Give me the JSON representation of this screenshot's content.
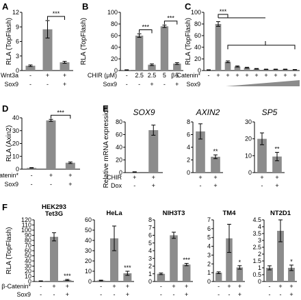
{
  "panels": [
    {
      "id": "A",
      "ylabel": "RLA (TopFlash)",
      "ymax": 12,
      "ticks": [
        0,
        3,
        6,
        9,
        12
      ],
      "values": [
        1.0,
        8.5,
        1.7
      ],
      "errors": [
        0.15,
        1.8,
        0.2
      ],
      "stars": [
        "",
        "",
        ""
      ],
      "rows": [
        {
          "label": "Wnt3a",
          "cells": [
            "-",
            "+",
            "+"
          ]
        },
        {
          "label": "Sox9",
          "cells": [
            "-",
            "-",
            "+"
          ]
        }
      ],
      "brackets": [
        {
          "from": 1,
          "to": 2,
          "text": "***"
        }
      ]
    },
    {
      "id": "B",
      "ylabel": "RLA (TopFlash)",
      "ymax": 100,
      "ticks": [
        0,
        20,
        40,
        60,
        80,
        100
      ],
      "values": [
        1.0,
        60,
        10,
        76,
        12
      ],
      "errors": [
        0.3,
        3,
        1.5,
        2,
        1.5
      ],
      "stars": [
        "",
        "",
        "",
        "",
        ""
      ],
      "rows": [
        {
          "label": "CHIR (μM)",
          "cells": [
            "-",
            "2.5",
            "2.5",
            "5",
            "5"
          ]
        },
        {
          "label": "Sox9",
          "cells": [
            "-",
            "-",
            "+",
            "-",
            "+"
          ]
        }
      ],
      "brackets": [
        {
          "from": 1,
          "to": 2,
          "text": "***"
        },
        {
          "from": 3,
          "to": 4,
          "text": "***"
        }
      ]
    },
    {
      "id": "C",
      "ylabel": "RLA (TopFlash)",
      "ymax": 100,
      "ticks": [
        0,
        20,
        40,
        60,
        80,
        100
      ],
      "values": [
        1.0,
        80,
        15,
        7,
        5,
        3,
        2,
        2,
        2,
        1.5
      ],
      "errors": [
        0.3,
        4,
        1.5,
        1,
        0.6,
        0.5,
        0.4,
        0.4,
        0.4,
        0.3
      ],
      "stars": [
        "",
        "",
        "",
        "",
        "",
        "",
        "",
        "",
        "",
        ""
      ],
      "rows": [
        {
          "label": "β-Catenin*",
          "cells": [
            "-",
            "+",
            "+",
            "+",
            "+",
            "+",
            "+",
            "+",
            "+",
            "+"
          ]
        },
        {
          "label": "Sox9",
          "cells": [
            "",
            "",
            "",
            "",
            "",
            "",
            "",
            "",
            "",
            ""
          ]
        }
      ],
      "brackets": [
        {
          "from": 1,
          "to": 2,
          "text": "***"
        }
      ]
    },
    {
      "id": "D",
      "ylabel": "RLA (Axin2)",
      "ymax": 40,
      "ticks": [
        0,
        10,
        20,
        30,
        40
      ],
      "values": [
        1.0,
        38,
        5
      ],
      "errors": [
        0.2,
        0.8,
        0.6
      ],
      "stars": [
        "",
        "",
        ""
      ],
      "rows": [
        {
          "label": "β-Catenin*",
          "cells": [
            "-",
            "+",
            "+"
          ]
        },
        {
          "label": "Sox9",
          "cells": [
            "-",
            "-",
            "+"
          ]
        }
      ],
      "brackets": [
        {
          "from": 1,
          "to": 2,
          "text": "***"
        }
      ]
    },
    {
      "id": "E",
      "title": "SOX9",
      "ylabel": "Relative mRNA expression",
      "ymax": 80,
      "ticks": [
        0,
        20,
        40,
        60,
        80
      ],
      "values": [
        1.0,
        67
      ],
      "errors": [
        0.3,
        8
      ],
      "stars": [
        "",
        ""
      ],
      "rows": [
        {
          "label": "CHIR",
          "cells": [
            "+",
            "+"
          ]
        },
        {
          "label": "Dox",
          "cells": [
            "-",
            "+"
          ]
        }
      ]
    },
    {
      "id": "E2",
      "title": "AXIN2",
      "ylabel": "",
      "ymax": 8,
      "ticks": [
        0,
        2,
        4,
        6,
        8
      ],
      "values": [
        6.5,
        2.5
      ],
      "errors": [
        1.2,
        0.3
      ],
      "stars": [
        "",
        "**"
      ],
      "rows": [
        {
          "label": "",
          "cells": [
            "+",
            "+"
          ]
        },
        {
          "label": "",
          "cells": [
            "-",
            "+"
          ]
        }
      ]
    },
    {
      "id": "E3",
      "title": "SP5",
      "ylabel": "",
      "ymax": 30,
      "ticks": [
        0,
        10,
        20,
        30
      ],
      "values": [
        20,
        9.5
      ],
      "errors": [
        3.5,
        2.5
      ],
      "stars": [
        "",
        "**"
      ],
      "rows": [
        {
          "label": "",
          "cells": [
            "+",
            "+"
          ]
        },
        {
          "label": "",
          "cells": [
            "-",
            "+"
          ]
        }
      ]
    },
    {
      "id": "F",
      "title": "HEK293 Tet3G",
      "ylabel": "RLA (TopFlash)",
      "ymax": 120,
      "ticks": [
        0,
        10,
        20,
        30,
        40,
        50,
        60,
        70,
        80,
        90,
        100,
        110,
        120
      ],
      "values": [
        1.0,
        87,
        3
      ],
      "errors": [
        0.3,
        8,
        1
      ],
      "stars": [
        "",
        "",
        "***"
      ],
      "rows": [
        {
          "label": "β-Catenin*",
          "cells": [
            "-",
            "+",
            "+"
          ]
        },
        {
          "label": "Sox9",
          "cells": [
            "-",
            "-",
            "+"
          ]
        }
      ]
    },
    {
      "id": "F2",
      "title": "HeLa",
      "ylabel": "",
      "ymax": 60,
      "ticks": [
        0,
        10,
        20,
        30,
        40,
        50,
        60
      ],
      "values": [
        1.0,
        42,
        8
      ],
      "errors": [
        0.3,
        12,
        2
      ],
      "stars": [
        "",
        "",
        "***"
      ],
      "rows": [
        {
          "label": "",
          "cells": [
            "-",
            "+",
            "+"
          ]
        },
        {
          "label": "",
          "cells": [
            "-",
            "-",
            "+"
          ]
        }
      ]
    },
    {
      "id": "F3",
      "title": "NIH3T3",
      "ylabel": "",
      "ymax": 8,
      "ticks": [
        0,
        1,
        2,
        3,
        4,
        5,
        6,
        7,
        8
      ],
      "values": [
        1.0,
        6.0,
        2.2
      ],
      "errors": [
        0.1,
        0.4,
        0.15
      ],
      "stars": [
        "",
        "",
        "***"
      ],
      "rows": [
        {
          "label": "",
          "cells": [
            "-",
            "+",
            "+"
          ]
        },
        {
          "label": "",
          "cells": [
            "-",
            "-",
            "+"
          ]
        }
      ]
    },
    {
      "id": "F4",
      "title": "TM4",
      "ylabel": "",
      "ymax": 7,
      "ticks": [
        0,
        1,
        2,
        3,
        4,
        5,
        6,
        7
      ],
      "values": [
        1.0,
        4.9,
        1.6
      ],
      "errors": [
        0.1,
        1.6,
        0.2
      ],
      "stars": [
        "",
        "",
        "*"
      ],
      "rows": [
        {
          "label": "",
          "cells": [
            "-",
            "+",
            "+"
          ]
        },
        {
          "label": "",
          "cells": [
            "-",
            "-",
            "+"
          ]
        }
      ]
    },
    {
      "id": "F5",
      "title": "NT2D1",
      "ylabel": "",
      "ymax": 4.5,
      "ticks": [
        0,
        0.5,
        1,
        1.5,
        2,
        2.5,
        3,
        3.5,
        4,
        4.5
      ],
      "values": [
        1.0,
        3.7,
        1.0
      ],
      "errors": [
        0.15,
        0.8,
        0.2
      ],
      "stars": [
        "",
        "",
        "*"
      ],
      "rows": [
        {
          "label": "",
          "cells": [
            "-",
            "+",
            "+"
          ]
        },
        {
          "label": "",
          "cells": [
            "-",
            "-",
            "+"
          ]
        }
      ]
    }
  ],
  "colors": {
    "bar": "#8c8c8c",
    "axis": "#000000",
    "ramp": "#8c8c8c"
  },
  "chart_data": [
    {
      "type": "bar",
      "panel": "A",
      "ylabel": "RLA (TopFlash)",
      "ylim": [
        0,
        12
      ],
      "categories": [
        "Wnt3a- Sox9-",
        "Wnt3a+ Sox9-",
        "Wnt3a+ Sox9+"
      ],
      "values": [
        1.0,
        8.5,
        1.7
      ]
    },
    {
      "type": "bar",
      "panel": "B",
      "ylabel": "RLA (TopFlash)",
      "ylim": [
        0,
        100
      ],
      "categories": [
        "-/-",
        "2.5/-",
        "2.5/+",
        "5/-",
        "5/+"
      ],
      "values": [
        1.0,
        60,
        10,
        76,
        12
      ]
    },
    {
      "type": "bar",
      "panel": "C",
      "ylabel": "RLA (TopFlash)",
      "ylim": [
        0,
        100
      ],
      "values": [
        1.0,
        80,
        15,
        7,
        5,
        3,
        2,
        2,
        2,
        1.5
      ]
    },
    {
      "type": "bar",
      "panel": "D",
      "ylabel": "RLA (Axin2)",
      "ylim": [
        0,
        40
      ],
      "values": [
        1.0,
        38,
        5
      ]
    },
    {
      "type": "bar",
      "panel": "E",
      "title": "SOX9",
      "ylabel": "Relative mRNA expression",
      "ylim": [
        0,
        80
      ],
      "values": [
        1.0,
        67
      ]
    },
    {
      "type": "bar",
      "panel": "E",
      "title": "AXIN2",
      "ylim": [
        0,
        8
      ],
      "values": [
        6.5,
        2.5
      ]
    },
    {
      "type": "bar",
      "panel": "E",
      "title": "SP5",
      "ylim": [
        0,
        30
      ],
      "values": [
        20,
        9.5
      ]
    },
    {
      "type": "bar",
      "panel": "F",
      "title": "HEK293 Tet3G",
      "ylabel": "RLA (TopFlash)",
      "ylim": [
        0,
        120
      ],
      "values": [
        1.0,
        87,
        3
      ]
    },
    {
      "type": "bar",
      "panel": "F",
      "title": "HeLa",
      "ylim": [
        0,
        60
      ],
      "values": [
        1.0,
        42,
        8
      ]
    },
    {
      "type": "bar",
      "panel": "F",
      "title": "NIH3T3",
      "ylim": [
        0,
        8
      ],
      "values": [
        1.0,
        6.0,
        2.2
      ]
    },
    {
      "type": "bar",
      "panel": "F",
      "title": "TM4",
      "ylim": [
        0,
        7
      ],
      "values": [
        1.0,
        4.9,
        1.6
      ]
    },
    {
      "type": "bar",
      "panel": "F",
      "title": "NT2D1",
      "ylim": [
        0,
        4.5
      ],
      "values": [
        1.0,
        3.7,
        1.0
      ]
    }
  ]
}
